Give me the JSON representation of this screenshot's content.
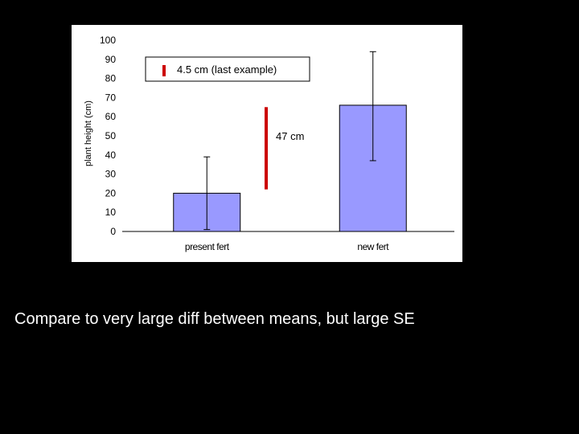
{
  "chart_data": {
    "type": "bar",
    "categories": [
      "present fert",
      "new fert"
    ],
    "values": [
      20,
      66
    ],
    "error_bars": [
      {
        "low": 1,
        "high": 39
      },
      {
        "low": 37,
        "high": 94
      }
    ],
    "title": "",
    "xlabel": "",
    "ylabel": "plant height (cm)",
    "ylim": [
      0,
      100
    ],
    "yticks": [
      0,
      10,
      20,
      30,
      40,
      50,
      60,
      70,
      80,
      90,
      100
    ],
    "ytick_labels": [
      "0",
      "10",
      "20",
      "30",
      "40",
      "50",
      "60",
      "70",
      "80",
      "90",
      "100"
    ],
    "grid": false,
    "bar_color": "#9999ff",
    "annotations": {
      "diff_between_means": {
        "label": "47 cm",
        "y_low": 22,
        "y_high": 65,
        "color": "#cc0000"
      },
      "legend_note": {
        "label": "4.5 cm (last example)",
        "color": "#cc0000"
      }
    }
  },
  "caption": "Compare to very large diff between means, but large SE"
}
